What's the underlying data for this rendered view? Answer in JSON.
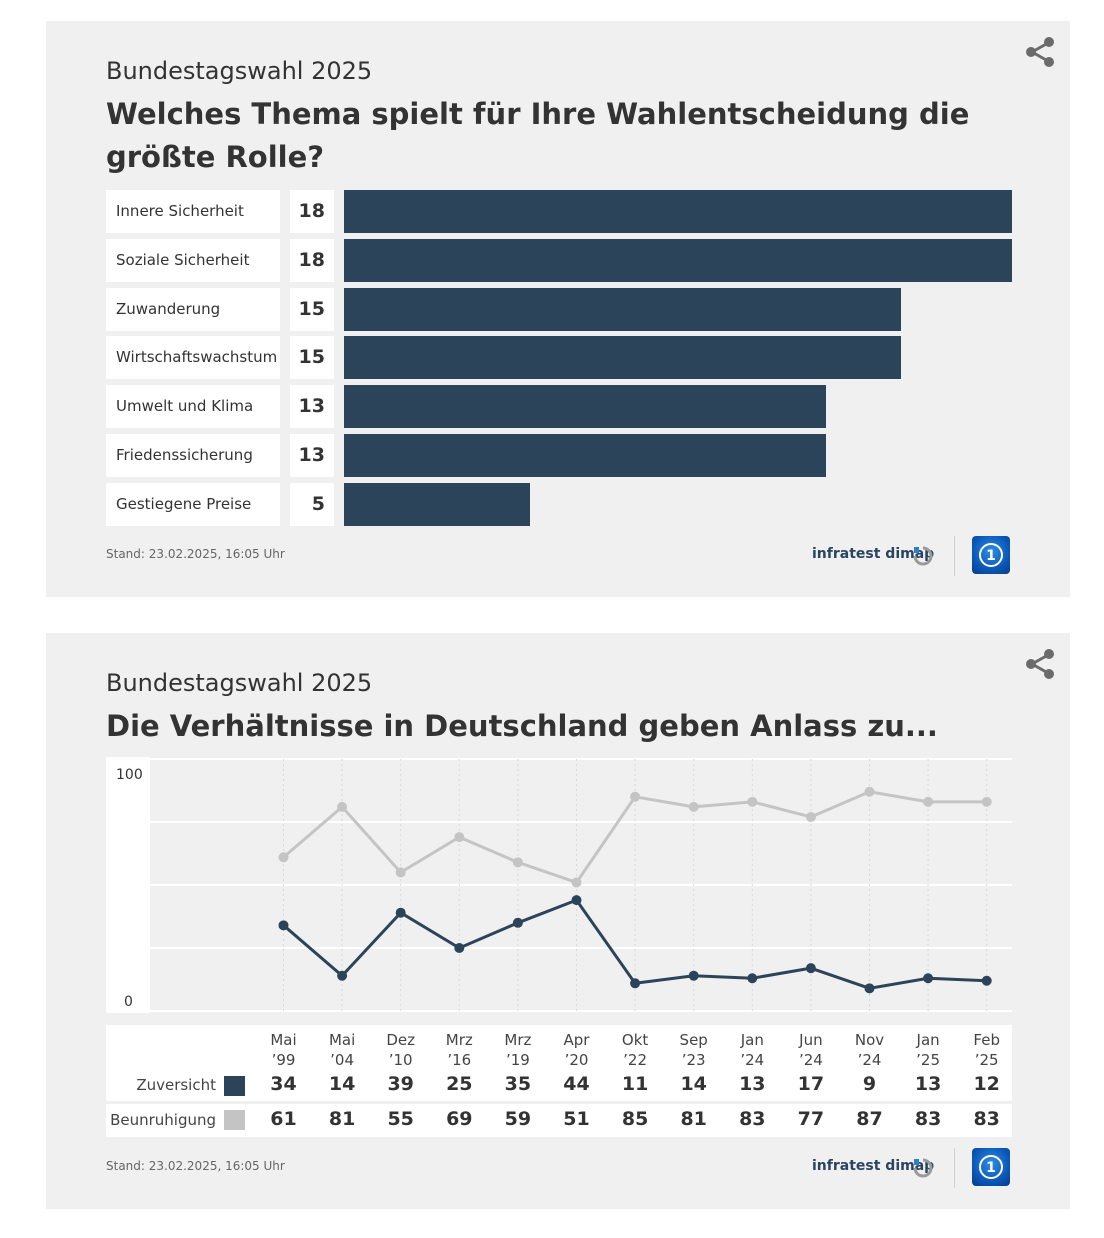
{
  "card1": {
    "kicker": "Bundestagswahl 2025",
    "title": "Welches Thema spielt für Ihre Wahlentscheidung die größte Rolle?",
    "stand": "Stand:  23.02.2025, 16:05 Uhr",
    "source": "infratest dimap"
  },
  "card2": {
    "kicker": "Bundestagswahl 2025",
    "title": "Die Verhältnisse in Deutschland geben Anlass zu...",
    "stand": "Stand:  23.02.2025, 16:05 Uhr",
    "source": "infratest dimap"
  },
  "colors": {
    "dark": "#2c4459",
    "light": "#c4c4c4",
    "card_bg": "#f0f0f0",
    "logo_blue": "#0b58b8"
  },
  "icons": {
    "share": "share-icon",
    "infratest": "infratest-dimap-logo-icon",
    "ard": "tagesschau-logo-icon"
  },
  "chart_data": [
    {
      "type": "bar",
      "title": "Welches Thema spielt für Ihre Wahlentscheidung die größte Rolle?",
      "categories": [
        "Innere Sicherheit",
        "Soziale Sicherheit",
        "Zuwanderung",
        "Wirtschaftswachstum",
        "Umwelt und Klima",
        "Friedenssicherung",
        "Gestiegene Preise"
      ],
      "values": [
        18,
        18,
        15,
        15,
        13,
        13,
        5
      ],
      "xlim": [
        0,
        18
      ]
    },
    {
      "type": "line",
      "title": "Die Verhältnisse in Deutschland geben Anlass zu...",
      "x": [
        [
          "Mai",
          "’99"
        ],
        [
          "Mai",
          "’04"
        ],
        [
          "Dez",
          "’10"
        ],
        [
          "Mrz",
          "’16"
        ],
        [
          "Mrz",
          "’19"
        ],
        [
          "Apr",
          "’20"
        ],
        [
          "Okt",
          "’22"
        ],
        [
          "Sep",
          "’23"
        ],
        [
          "Jan",
          "’24"
        ],
        [
          "Jun",
          "’24"
        ],
        [
          "Nov",
          "’24"
        ],
        [
          "Jan",
          "’25"
        ],
        [
          "Feb",
          "’25"
        ]
      ],
      "ylim": [
        0,
        100
      ],
      "y_ticks": [
        "0",
        "100"
      ],
      "series": [
        {
          "name": "Zuversicht",
          "color": "#2c4459",
          "values": [
            34,
            14,
            39,
            25,
            35,
            44,
            11,
            14,
            13,
            17,
            9,
            13,
            12
          ]
        },
        {
          "name": "Beunruhigung",
          "color": "#c4c4c4",
          "values": [
            61,
            81,
            55,
            69,
            59,
            51,
            85,
            81,
            83,
            77,
            87,
            83,
            83
          ]
        }
      ]
    }
  ]
}
